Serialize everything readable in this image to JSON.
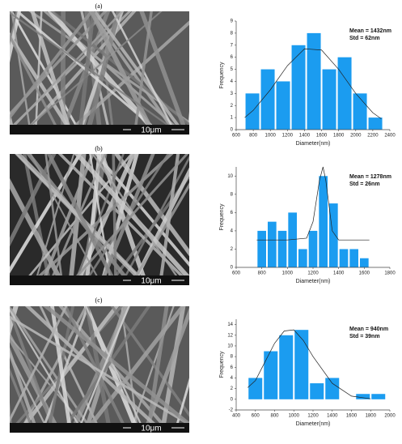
{
  "panels": [
    {
      "label": "(a)",
      "scale": "10μm"
    },
    {
      "label": "(b)",
      "scale": "10μm"
    },
    {
      "label": "(c)",
      "scale": "10μm"
    }
  ],
  "chart_data": [
    {
      "type": "histogram",
      "xlabel": "Diameter(nm)",
      "ylabel": "Frequency",
      "color": "#1b9cf0",
      "annotations": [
        "Mean = 1432nm",
        "Std = 62nm"
      ],
      "bins": [
        700,
        880,
        1060,
        1240,
        1420,
        1600,
        1780,
        1960,
        2140,
        2320
      ],
      "values": [
        3,
        5,
        4,
        7,
        8,
        5,
        6,
        3,
        1
      ],
      "xlim": [
        600,
        2400
      ],
      "ylim": [
        0,
        9
      ],
      "xticks": [
        600,
        800,
        1000,
        1200,
        1400,
        1600,
        1800,
        2000,
        2200,
        2400
      ],
      "yticks": [
        0,
        1,
        2,
        3,
        4,
        5,
        6,
        7,
        8,
        9
      ],
      "fit": {
        "x": [
          700,
          800,
          1000,
          1200,
          1400,
          1600,
          1800,
          2000,
          2200,
          2300
        ],
        "y": [
          1.0,
          1.6,
          3.3,
          5.3,
          6.7,
          6.6,
          5.0,
          3.0,
          1.4,
          0.9
        ]
      }
    },
    {
      "type": "histogram",
      "xlabel": "Diameter(nm)",
      "ylabel": "Frequency",
      "color": "#1b9cf0",
      "annotations": [
        "Mean = 1278nm",
        "Std = 26nm"
      ],
      "bins": [
        760,
        840,
        920,
        1000,
        1080,
        1160,
        1240,
        1320,
        1400,
        1480,
        1560,
        1640
      ],
      "values": [
        4,
        5,
        4,
        6,
        2,
        4,
        10,
        7,
        2,
        2,
        1
      ],
      "xlim": [
        600,
        1800
      ],
      "ylim": [
        0,
        11
      ],
      "xticks": [
        600,
        800,
        1000,
        1200,
        1400,
        1600,
        1800
      ],
      "yticks": [
        0,
        2,
        4,
        6,
        8,
        10
      ],
      "fit": {
        "x": [
          760,
          1000,
          1150,
          1200,
          1250,
          1278,
          1300,
          1350,
          1400,
          1640
        ],
        "y": [
          3,
          3,
          3.2,
          5,
          9.5,
          11,
          9.5,
          4,
          3,
          3
        ]
      }
    },
    {
      "type": "histogram",
      "xlabel": "Diameter(nm)",
      "ylabel": "Frequency",
      "color": "#1b9cf0",
      "annotations": [
        "Mean = 940nm",
        "Std = 39nm"
      ],
      "bins": [
        520,
        680,
        840,
        1000,
        1160,
        1320,
        1480,
        1640,
        1800,
        1960
      ],
      "values": [
        4,
        9,
        12,
        13,
        3,
        4,
        0,
        1,
        1
      ],
      "xlim": [
        400,
        2000
      ],
      "ylim": [
        -2,
        15
      ],
      "xticks": [
        400,
        600,
        800,
        1000,
        1200,
        1400,
        1600,
        1800,
        2000
      ],
      "yticks": [
        -2,
        0,
        2,
        4,
        6,
        8,
        10,
        12,
        14
      ],
      "fit": {
        "x": [
          520,
          600,
          700,
          800,
          900,
          1000,
          1100,
          1200,
          1400,
          1600,
          1800
        ],
        "y": [
          2.2,
          3.5,
          7,
          10.5,
          12.8,
          13,
          11,
          8,
          3,
          0.6,
          0.1
        ]
      }
    }
  ]
}
